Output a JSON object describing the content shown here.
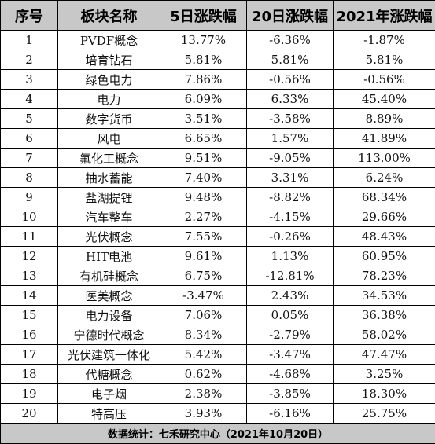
{
  "table": {
    "headers": [
      "序号",
      "板块名称",
      "5日涨跌幅",
      "20日涨跌幅",
      "2021年涨跌幅"
    ],
    "rows": [
      [
        "1",
        "PVDF概念",
        "13.77%",
        "-6.36%",
        "-1.87%"
      ],
      [
        "2",
        "培育钻石",
        "5.81%",
        "5.81%",
        "5.81%"
      ],
      [
        "3",
        "绿色电力",
        "7.86%",
        "-0.56%",
        "-0.56%"
      ],
      [
        "4",
        "电力",
        "6.09%",
        "6.33%",
        "45.40%"
      ],
      [
        "5",
        "数字货币",
        "3.51%",
        "-3.58%",
        "8.89%"
      ],
      [
        "6",
        "风电",
        "6.65%",
        "1.57%",
        "41.89%"
      ],
      [
        "7",
        "氟化工概念",
        "9.51%",
        "-9.05%",
        "113.00%"
      ],
      [
        "8",
        "抽水蓄能",
        "7.40%",
        "3.31%",
        "6.24%"
      ],
      [
        "9",
        "盐湖提锂",
        "9.48%",
        "-8.82%",
        "68.34%"
      ],
      [
        "10",
        "汽车整车",
        "2.27%",
        "-4.15%",
        "29.66%"
      ],
      [
        "11",
        "光伏概念",
        "7.55%",
        "-0.26%",
        "48.43%"
      ],
      [
        "12",
        "HIT电池",
        "9.61%",
        "1.13%",
        "60.95%"
      ],
      [
        "13",
        "有机硅概念",
        "6.75%",
        "-12.81%",
        "78.23%"
      ],
      [
        "14",
        "医美概念",
        "-3.47%",
        "2.43%",
        "34.53%"
      ],
      [
        "15",
        "电力设备",
        "7.06%",
        "0.05%",
        "36.38%"
      ],
      [
        "16",
        "宁德时代概念",
        "8.34%",
        "-2.79%",
        "58.02%"
      ],
      [
        "17",
        "光伏建筑一体化",
        "5.42%",
        "-3.47%",
        "47.47%"
      ],
      [
        "18",
        "代糖概念",
        "0.62%",
        "-4.68%",
        "3.25%"
      ],
      [
        "19",
        "电子烟",
        "2.38%",
        "-3.85%",
        "18.30%"
      ],
      [
        "20",
        "特高压",
        "3.93%",
        "-6.16%",
        "25.75%"
      ]
    ],
    "footer": "数据统计：七禾研究中心（2021年10月20日）"
  }
}
